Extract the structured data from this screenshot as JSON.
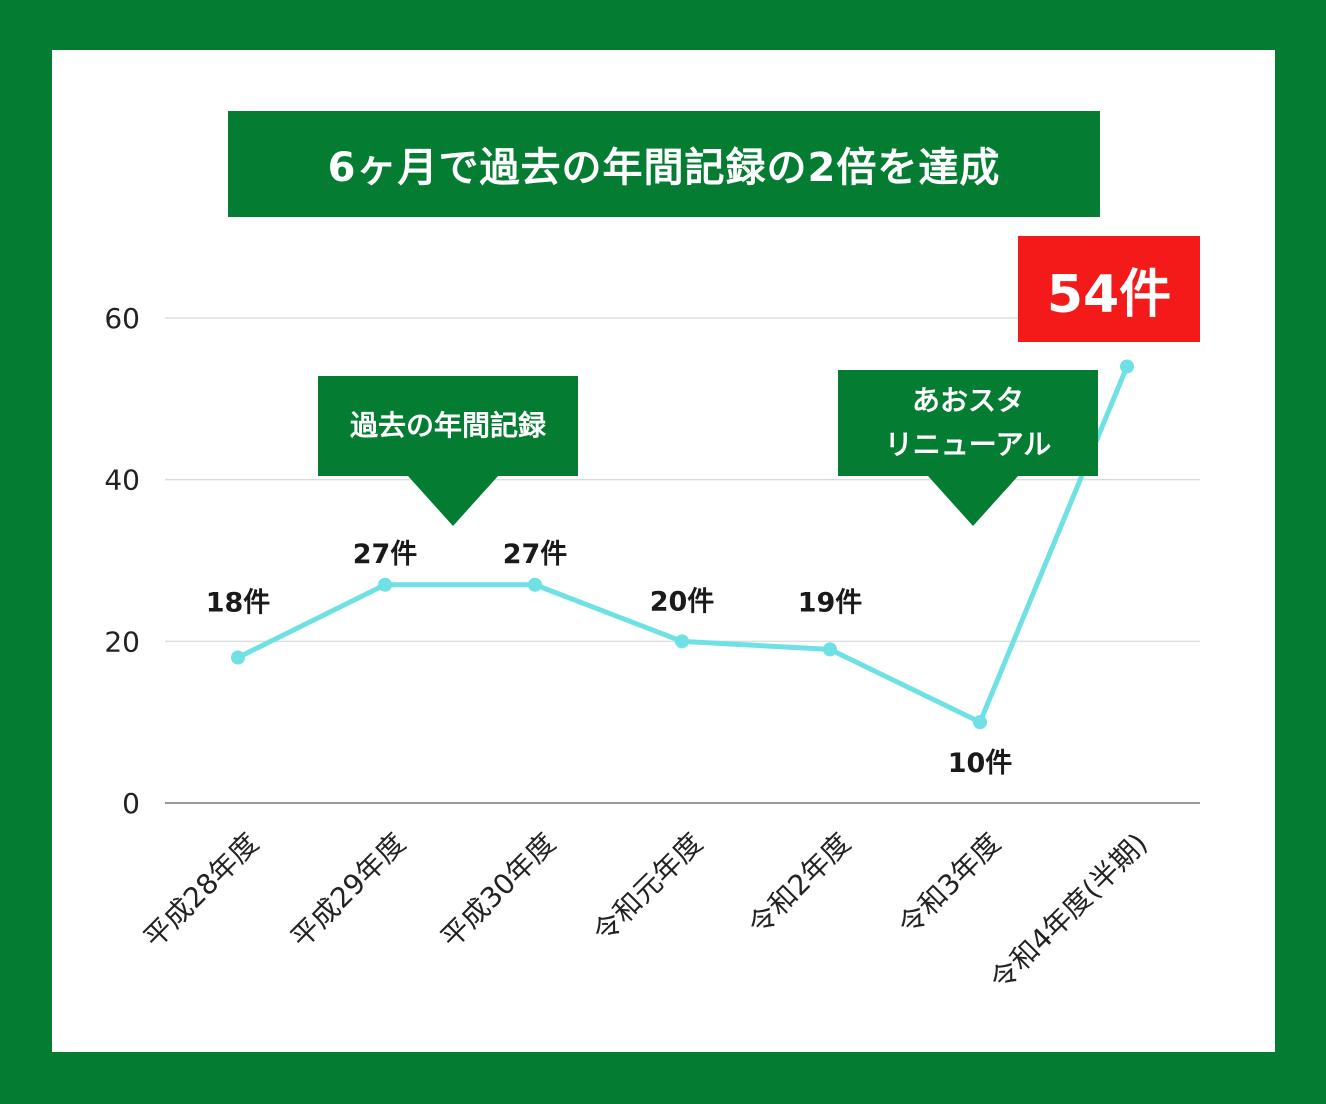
{
  "colors": {
    "frame": "#047d33",
    "panel": "#ffffff",
    "banner": "#047d33",
    "line": "#6fe0e3",
    "highlight": "#f51a1a",
    "grid": "#dddddd",
    "axis": "#999999"
  },
  "title": "6ヶ月で過去の年間記録の2倍を達成",
  "callouts": [
    {
      "id": "record",
      "lines": [
        "過去の年間記録"
      ]
    },
    {
      "id": "renewal",
      "lines": [
        "あおスタ",
        "リニューアル"
      ]
    }
  ],
  "highlight_label": "54件",
  "chart_data": {
    "type": "line",
    "categories": [
      "平成28年度",
      "平成29年度",
      "平成30年度",
      "令和元年度",
      "令和2年度",
      "令和3年度",
      "令和4年度(半期)"
    ],
    "series": [
      {
        "values": [
          18,
          27,
          27,
          20,
          19,
          10,
          54
        ]
      }
    ],
    "data_labels": [
      "18件",
      "27件",
      "27件",
      "20件",
      "19件",
      "10件",
      ""
    ],
    "y_ticks": [
      0,
      20,
      40,
      60
    ],
    "ylim": [
      0,
      60
    ],
    "grid": true
  }
}
